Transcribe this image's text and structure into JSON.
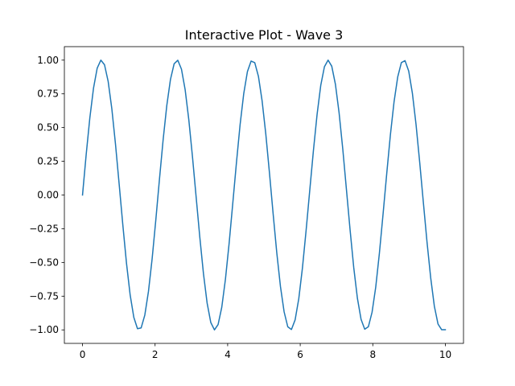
{
  "chart_data": {
    "type": "line",
    "title": "Interactive Plot - Wave 3",
    "xlabel": "",
    "ylabel": "",
    "xlim": [
      -0.5,
      10.5
    ],
    "ylim": [
      -1.1,
      1.1
    ],
    "x_ticks": [
      0,
      2,
      4,
      6,
      8,
      10
    ],
    "x_tick_labels": [
      "0",
      "2",
      "4",
      "6",
      "8",
      "10"
    ],
    "y_ticks": [
      1.0,
      0.75,
      0.5,
      0.25,
      0.0,
      -0.25,
      -0.5,
      -0.75,
      -1.0
    ],
    "y_tick_labels": [
      "1.00",
      "0.75",
      "0.50",
      "0.25",
      "0.00",
      "−0.25",
      "−0.50",
      "−0.75",
      "−1.00"
    ],
    "grid": false,
    "legend": "none",
    "line_color": "#1f77b4",
    "series": [
      {
        "x": [
          0.0,
          0.101,
          0.202,
          0.303,
          0.404,
          0.505,
          0.606,
          0.707,
          0.808,
          0.909,
          1.01,
          1.111,
          1.212,
          1.313,
          1.414,
          1.515,
          1.616,
          1.717,
          1.818,
          1.919,
          2.02,
          2.121,
          2.222,
          2.323,
          2.424,
          2.525,
          2.626,
          2.727,
          2.828,
          2.929,
          3.03,
          3.131,
          3.232,
          3.333,
          3.434,
          3.535,
          3.636,
          3.737,
          3.838,
          3.939,
          4.04,
          4.141,
          4.242,
          4.343,
          4.444,
          4.545,
          4.646,
          4.747,
          4.848,
          4.949,
          5.051,
          5.152,
          5.253,
          5.354,
          5.455,
          5.556,
          5.657,
          5.758,
          5.859,
          5.96,
          6.061,
          6.162,
          6.263,
          6.364,
          6.465,
          6.566,
          6.667,
          6.768,
          6.869,
          6.97,
          7.071,
          7.172,
          7.273,
          7.374,
          7.475,
          7.576,
          7.677,
          7.778,
          7.879,
          7.98,
          8.081,
          8.182,
          8.283,
          8.384,
          8.485,
          8.586,
          8.687,
          8.788,
          8.889,
          8.99,
          9.091,
          9.192,
          9.293,
          9.394,
          9.495,
          9.596,
          9.697,
          9.798,
          9.899,
          10.0
        ],
        "y": [
          0.0,
          0.3,
          0.572,
          0.792,
          0.94,
          1.0,
          0.966,
          0.842,
          0.639,
          0.377,
          0.08,
          -0.222,
          -0.506,
          -0.741,
          -0.907,
          -0.991,
          -0.985,
          -0.89,
          -0.714,
          -0.472,
          -0.185,
          0.118,
          0.41,
          0.664,
          0.857,
          0.973,
          0.999,
          0.933,
          0.782,
          0.559,
          0.285,
          -0.014,
          -0.311,
          -0.582,
          -0.801,
          -0.945,
          -1.0,
          -0.96,
          -0.832,
          -0.624,
          -0.36,
          -0.062,
          0.239,
          0.522,
          0.753,
          0.915,
          0.993,
          0.981,
          0.88,
          0.699,
          0.453,
          0.165,
          -0.138,
          -0.428,
          -0.678,
          -0.866,
          -0.977,
          -0.997,
          -0.926,
          -0.769,
          -0.541,
          -0.263,
          0.035,
          0.33,
          0.598,
          0.813,
          0.951,
          1.0,
          0.955,
          0.821,
          0.61,
          0.343,
          0.043,
          -0.258,
          -0.538,
          -0.765,
          -0.922,
          -0.995,
          -0.976,
          -0.869,
          -0.683,
          -0.432,
          -0.142,
          0.158,
          0.445,
          0.691,
          0.875,
          0.982,
          0.996,
          0.919,
          0.755,
          0.523,
          0.242,
          -0.056,
          -0.35,
          -0.614,
          -0.825,
          -0.957,
          -0.999,
          -0.999
        ]
      }
    ]
  }
}
